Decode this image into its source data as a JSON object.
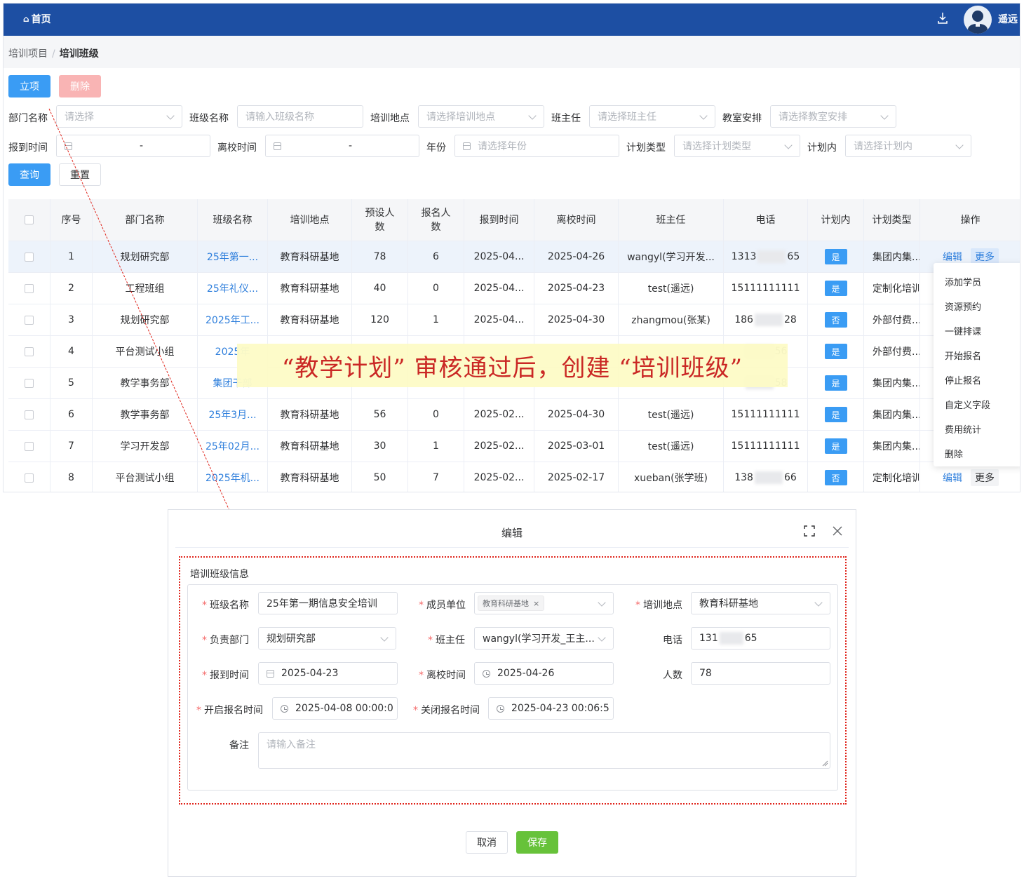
{
  "topbar": {
    "home": "首页",
    "user": "遥远",
    "home_icon": "home-icon",
    "download_icon": "download-icon"
  },
  "breadcrumb": {
    "parent": "培训项目",
    "separator": "/",
    "current": "培训班级"
  },
  "toolbar": {
    "create": "立项",
    "delete": "删除",
    "query": "查询",
    "reset": "重置"
  },
  "filters": {
    "dept_label": "部门名称",
    "dept_ph": "请选择",
    "class_label": "班级名称",
    "class_ph": "请输入班级名称",
    "site_label": "培训地点",
    "site_ph": "请选择培训地点",
    "teacher_label": "班主任",
    "teacher_ph": "请选择班主任",
    "room_label": "教室安排",
    "room_ph": "请选择教室安排",
    "arrive_label": "报到时间",
    "arrive_sep": "-",
    "leave_label": "离校时间",
    "leave_sep": "-",
    "year_label": "年份",
    "year_ph": "请选择年份",
    "plantype_label": "计划类型",
    "plantype_ph": "请选择计划类型",
    "inplan_label": "计划内",
    "inplan_ph": "请选择计划内"
  },
  "table": {
    "headers": [
      "序号",
      "部门名称",
      "班级名称",
      "培训地点",
      "预设人数",
      "报名人数",
      "报到时间",
      "离校时间",
      "班主任",
      "电话",
      "计划内",
      "计划类型",
      "操作"
    ],
    "rows": [
      {
        "no": "1",
        "dept": "规划研究部",
        "cls": "25年第一...",
        "site": "教育科研基地",
        "preset": "78",
        "enrolled": "6",
        "arrive": "2025-04...",
        "leave": "2025-04-26",
        "teacher": "wangyl(学习开发...",
        "phone_a": "1313",
        "phone_b": "65",
        "inplan": "是",
        "ptype": "集团内集..."
      },
      {
        "no": "2",
        "dept": "工程班组",
        "cls": "25年礼仪...",
        "site": "教育科研基地",
        "preset": "40",
        "enrolled": "0",
        "arrive": "2025-04...",
        "leave": "2025-04-23",
        "teacher": "test(遥远)",
        "phone_a": "15111111111",
        "phone_b": "",
        "inplan": "是",
        "ptype": "定制化培训"
      },
      {
        "no": "3",
        "dept": "规划研究部",
        "cls": "2025年工...",
        "site": "教育科研基地",
        "preset": "120",
        "enrolled": "1",
        "arrive": "2025-04...",
        "leave": "2025-04-30",
        "teacher": "zhangmou(张某)",
        "phone_a": "186",
        "phone_b": "28",
        "inplan": "否",
        "ptype": "外部付费..."
      },
      {
        "no": "4",
        "dept": "平台测试小组",
        "cls": "2025年",
        "site": "",
        "preset": "",
        "enrolled": "",
        "arrive": "",
        "leave": "",
        "teacher": "",
        "phone_a": "",
        "phone_b": "56",
        "inplan": "是",
        "ptype": "外部付费..."
      },
      {
        "no": "5",
        "dept": "教学事务部",
        "cls": "集团干部",
        "site": "",
        "preset": "",
        "enrolled": "",
        "arrive": "",
        "leave": "",
        "teacher": "",
        "phone_a": "",
        "phone_b": "58",
        "inplan": "是",
        "ptype": "集团内集..."
      },
      {
        "no": "6",
        "dept": "教学事务部",
        "cls": "25年3月...",
        "site": "教育科研基地",
        "preset": "56",
        "enrolled": "0",
        "arrive": "2025-02...",
        "leave": "2025-04-30",
        "teacher": "test(遥远)",
        "phone_a": "15111111111",
        "phone_b": "",
        "inplan": "是",
        "ptype": "集团内集..."
      },
      {
        "no": "7",
        "dept": "学习开发部",
        "cls": "25年02月...",
        "site": "教育科研基地",
        "preset": "30",
        "enrolled": "1",
        "arrive": "2025-02...",
        "leave": "2025-03-01",
        "teacher": "test(遥远)",
        "phone_a": "15111111111",
        "phone_b": "",
        "inplan": "是",
        "ptype": "集团内集..."
      },
      {
        "no": "8",
        "dept": "平台测试小组",
        "cls": "2025年机...",
        "site": "教育科研基地",
        "preset": "50",
        "enrolled": "7",
        "arrive": "2025-02...",
        "leave": "2025-02-17",
        "teacher": "xueban(张学班)",
        "phone_a": "138",
        "phone_b": "66",
        "inplan": "否",
        "ptype": "定制化培训"
      }
    ],
    "edit": "编辑",
    "more": "更多"
  },
  "dropdown": [
    "添加学员",
    "资源预约",
    "一键排课",
    "开始报名",
    "停止报名",
    "自定义字段",
    "费用统计",
    "删除"
  ],
  "banner": "“教学计划” 审核通过后，创建 “培训班级”",
  "dialog": {
    "title": "编辑",
    "section": "培训班级信息",
    "class_name_label": "班级名称",
    "class_name": "25年第一期信息安全培训",
    "member_unit_label": "成员单位",
    "member_unit_tag": "教育科研基地",
    "site_label": "培训地点",
    "site": "教育科研基地",
    "dept_label": "负责部门",
    "dept": "规划研究部",
    "teacher_label": "班主任",
    "teacher": "wangyl(学习开发_王主...",
    "phone_label": "电话",
    "phone_a": "131",
    "phone_b": "65",
    "arrive_label": "报到时间",
    "arrive": "2025-04-23",
    "leave_label": "离校时间",
    "leave": "2025-04-26",
    "count_label": "人数",
    "count": "78",
    "open_label": "开启报名时间",
    "open": "2025-04-08 00:00:0",
    "close_label": "关闭报名时间",
    "close": "2025-04-23 00:06:5",
    "remark_label": "备注",
    "remark_ph": "请输入备注",
    "cancel": "取消",
    "save": "保存"
  },
  "colors": {
    "topbar": "#1d4fa3",
    "primary": "#3a9cf4",
    "link": "#2f7fdc",
    "save": "#67c23a",
    "annotation": "#e0251c",
    "banner_bg": "#fdfbc7"
  }
}
